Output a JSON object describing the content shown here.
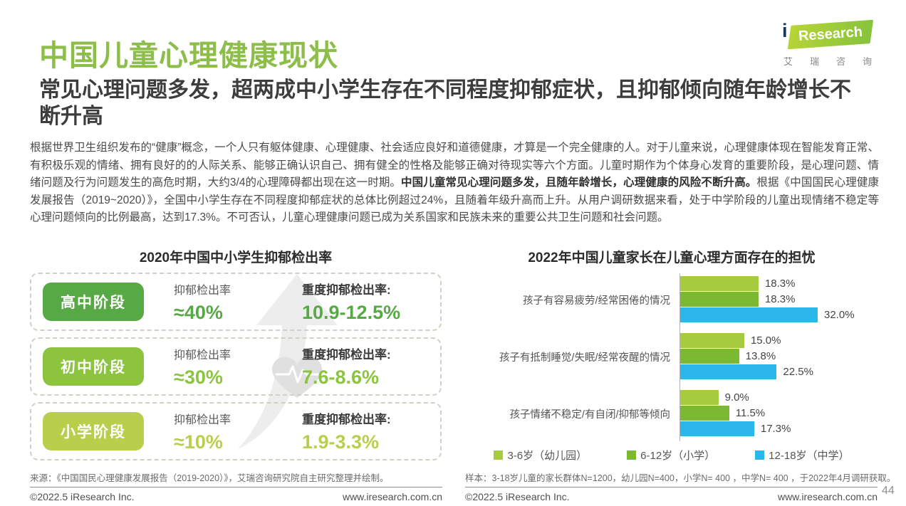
{
  "header": {
    "title": "中国儿童心理健康现状",
    "subtitle": "常见心理问题多发，超两成中小学生存在不同程度抑郁症状，且抑郁倾向随年龄增长不断升高"
  },
  "logo": {
    "i": "i",
    "research": "Research",
    "cn": [
      "艾",
      "瑞",
      "咨",
      "询"
    ]
  },
  "intro": {
    "pre": "根据世界卫生组织发布的“健康”概念，一个人只有躯体健康、心理健康、社会适应良好和道德健康，才算是一个完全健康的人。对于儿童来说，心理健康体现在智能发育正常、有积极乐观的情绪、拥有良好的的人际关系、能够正确认识自己、拥有健全的性格及能够正确对待现实等六个方面。儿童时期作为个体身心发育的重要阶段，是心理问题、情绪问题及行为问题发生的高危时期，大约3/4的心理障碍都出现在这一时期。",
    "bold": "中国儿童常见心理问题多发，且随年龄增长，心理健康的风险不断升高。",
    "post": "根据《中国国民心理健康发展报告（2019~2020）》，全国中小学生存在不同程度抑郁症状的总体比例超过24%，且随着年级升高而上升。从用户调研数据来看，处于中学阶段的儿童出现情绪不稳定等心理问题倾向的比例最高，达到17.3%。不可否认，儿童心理健康问题已成为关系国家和民族未来的重要公共卫生问题和社会问题。"
  },
  "left_chart": {
    "title": "2020年中国中小学生抑郁检出率",
    "rate_label": "抑郁检出率",
    "severe_label": "重度抑郁检出率:",
    "rows": [
      {
        "stage": "高中阶段",
        "rate": "≈40%",
        "severe": "10.9-12.5%",
        "color": "#57A945"
      },
      {
        "stage": "初中阶段",
        "rate": "≈30%",
        "severe": "7.6-8.6%",
        "color": "#8CC43F"
      },
      {
        "stage": "小学阶段",
        "rate": "≈10%",
        "severe": "1.9-3.3%",
        "color": "#B9CF4C"
      }
    ],
    "watermark_icon": "upward-arrow-with-heartbeat"
  },
  "chart_data": {
    "type": "bar",
    "orientation": "horizontal",
    "title": "2022年中国儿童家长在儿童心理方面存在的担忧",
    "categories": [
      "孩子有容易疲劳/经常困倦的情况",
      "孩子有抵制睡觉/失眠/经常夜醒的情况",
      "孩子情绪不稳定/有自闭/抑郁等倾向"
    ],
    "series": [
      {
        "name": "3-6岁（幼儿园）",
        "color": "#A6CB3E",
        "values": [
          18.3,
          15.0,
          9.0
        ]
      },
      {
        "name": "6-12岁（小学）",
        "color": "#7CB933",
        "values": [
          18.3,
          13.8,
          11.5
        ]
      },
      {
        "name": "12-18岁（中学）",
        "color": "#2BB7E9",
        "values": [
          32.0,
          22.5,
          17.3
        ]
      }
    ],
    "value_suffix": "%",
    "xlim": [
      0,
      35
    ],
    "grid": false,
    "legend_position": "bottom"
  },
  "sources": {
    "left": "来源：《中国国民心理健康发展报告（2019-2020）》，艾瑞咨询研究院自主研究整理并绘制。",
    "right": "样本：3-18岁儿童的家长群体N=1200，幼儿园N=400，小学N= 400 ，中学N= 400 ，于2022年4月调研获取。"
  },
  "footer": {
    "copyright": "©2022.5 iResearch Inc.",
    "website": "www.iresearch.com.cn",
    "page_number": "44"
  }
}
